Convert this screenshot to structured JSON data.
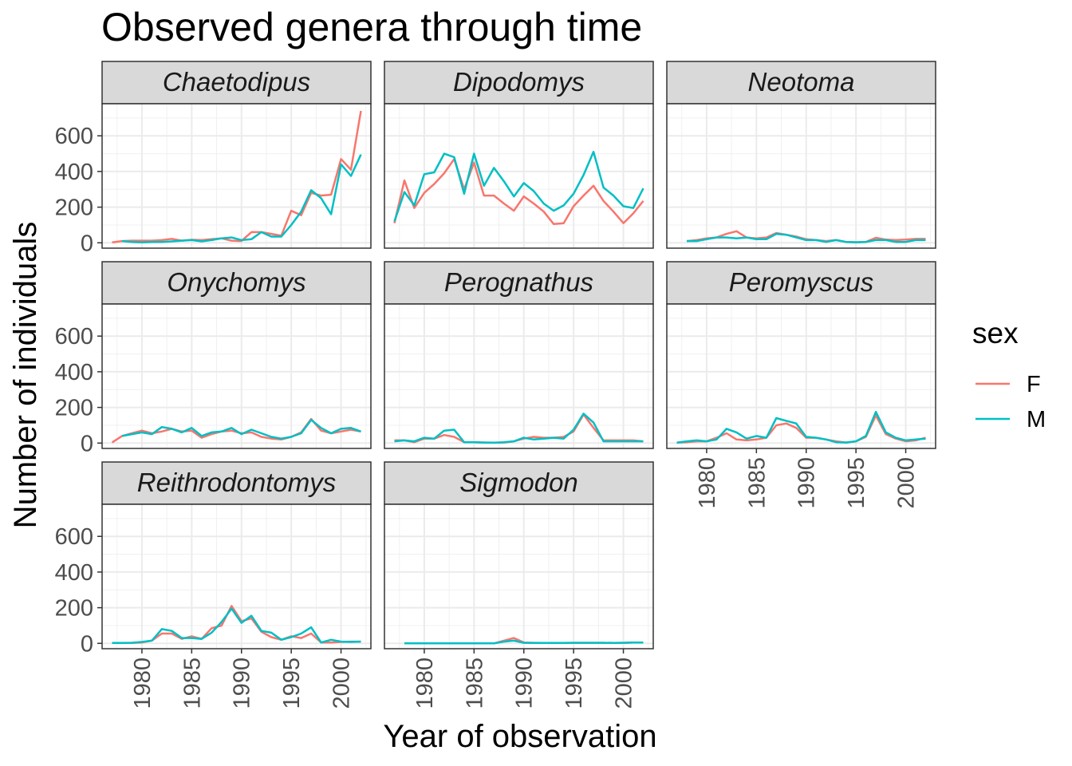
{
  "chart_data": {
    "type": "line",
    "title": "Observed genera through time",
    "xlabel": "Year of observation",
    "ylabel": "Number of individuals",
    "x_ticks": [
      1980,
      1985,
      1990,
      1995,
      2000
    ],
    "y_ticks": [
      0,
      200,
      400,
      600
    ],
    "xlim": [
      1976,
      2003
    ],
    "ylim": [
      -30,
      780
    ],
    "grid": true,
    "legend": {
      "title": "sex",
      "position": "right",
      "entries": [
        {
          "label": "F",
          "color": "#F8766D"
        },
        {
          "label": "M",
          "color": "#00BFC4"
        }
      ]
    },
    "colors": {
      "F": "#F8766D",
      "M": "#00BFC4"
    },
    "panels": [
      {
        "genus": "Chaetodipus",
        "F": {
          "x": [
            1977,
            1978,
            1979,
            1980,
            1981,
            1982,
            1983,
            1984,
            1985,
            1986,
            1987,
            1988,
            1989,
            1990,
            1991,
            1992,
            1993,
            1994,
            1995,
            1996,
            1997,
            1998,
            1999,
            2000,
            2001,
            2002
          ],
          "y": [
            2,
            10,
            12,
            12,
            12,
            15,
            22,
            12,
            17,
            15,
            20,
            25,
            12,
            10,
            60,
            60,
            50,
            40,
            180,
            155,
            280,
            265,
            270,
            470,
            410,
            740
          ]
        },
        "M": {
          "x": [
            1978,
            1979,
            1980,
            1981,
            1982,
            1983,
            1984,
            1985,
            1986,
            1987,
            1988,
            1989,
            1990,
            1991,
            1992,
            1993,
            1994,
            1995,
            1996,
            1997,
            1998,
            1999,
            2000,
            2001,
            2002
          ],
          "y": [
            10,
            5,
            2,
            5,
            5,
            8,
            12,
            15,
            8,
            15,
            25,
            30,
            15,
            20,
            60,
            35,
            35,
            100,
            175,
            295,
            250,
            160,
            440,
            375,
            495
          ]
        }
      },
      {
        "genus": "Dipodomys",
        "F": {
          "x": [
            1977,
            1978,
            1979,
            1980,
            1981,
            1982,
            1983,
            1984,
            1985,
            1986,
            1987,
            1988,
            1989,
            1990,
            1991,
            1992,
            1993,
            1994,
            1995,
            1996,
            1997,
            1998,
            1999,
            2000,
            2001,
            2002
          ],
          "y": [
            110,
            350,
            195,
            280,
            330,
            390,
            470,
            300,
            450,
            265,
            265,
            220,
            180,
            260,
            220,
            175,
            105,
            110,
            205,
            265,
            320,
            235,
            175,
            110,
            165,
            235
          ]
        },
        "M": {
          "x": [
            1977,
            1978,
            1979,
            1980,
            1981,
            1982,
            1983,
            1984,
            1985,
            1986,
            1987,
            1988,
            1989,
            1990,
            1991,
            1992,
            1993,
            1994,
            1995,
            1996,
            1997,
            1998,
            1999,
            2000,
            2001,
            2002
          ],
          "y": [
            120,
            285,
            210,
            385,
            395,
            500,
            480,
            275,
            500,
            320,
            420,
            345,
            260,
            335,
            290,
            220,
            180,
            210,
            275,
            380,
            510,
            310,
            265,
            205,
            195,
            305
          ]
        }
      },
      {
        "genus": "Neotoma",
        "F": {
          "x": [
            1978,
            1979,
            1980,
            1981,
            1982,
            1983,
            1984,
            1985,
            1986,
            1987,
            1988,
            1989,
            1990,
            1991,
            1992,
            1993,
            1994,
            1995,
            1996,
            1997,
            1998,
            1999,
            2000,
            2001,
            2002
          ],
          "y": [
            10,
            15,
            25,
            30,
            50,
            65,
            30,
            25,
            30,
            55,
            45,
            35,
            20,
            15,
            10,
            15,
            5,
            3,
            5,
            28,
            18,
            15,
            18,
            22,
            22
          ]
        },
        "M": {
          "x": [
            1978,
            1979,
            1980,
            1981,
            1982,
            1983,
            1984,
            1985,
            1986,
            1987,
            1988,
            1989,
            1990,
            1991,
            1992,
            1993,
            1994,
            1995,
            1996,
            1997,
            1998,
            1999,
            2000,
            2001,
            2002
          ],
          "y": [
            10,
            10,
            20,
            30,
            30,
            25,
            30,
            20,
            20,
            50,
            45,
            30,
            15,
            15,
            5,
            15,
            5,
            3,
            5,
            15,
            15,
            5,
            5,
            15,
            15
          ]
        }
      },
      {
        "genus": "Onychomys",
        "F": {
          "x": [
            1977,
            1978,
            1979,
            1980,
            1981,
            1982,
            1983,
            1984,
            1985,
            1986,
            1987,
            1988,
            1989,
            1990,
            1991,
            1992,
            1993,
            1994,
            1995,
            1996,
            1997,
            1998,
            1999,
            2000,
            2001,
            2002
          ],
          "y": [
            3,
            40,
            55,
            70,
            55,
            65,
            80,
            65,
            70,
            30,
            50,
            65,
            70,
            55,
            60,
            35,
            25,
            20,
            35,
            60,
            135,
            70,
            55,
            65,
            75,
            65
          ]
        },
        "M": {
          "x": [
            1978,
            1979,
            1980,
            1981,
            1982,
            1983,
            1984,
            1985,
            1986,
            1987,
            1988,
            1989,
            1990,
            1991,
            1992,
            1993,
            1994,
            1995,
            1996,
            1997,
            1998,
            1999,
            2000,
            2001,
            2002
          ],
          "y": [
            40,
            50,
            60,
            50,
            90,
            80,
            60,
            85,
            40,
            60,
            65,
            85,
            50,
            75,
            55,
            35,
            25,
            35,
            55,
            130,
            85,
            55,
            80,
            85,
            65
          ]
        }
      },
      {
        "genus": "Perognathus",
        "F": {
          "x": [
            1977,
            1978,
            1979,
            1980,
            1981,
            1982,
            1983,
            1984,
            1985,
            1986,
            1987,
            1988,
            1989,
            1990,
            1991,
            1992,
            1993,
            1994,
            1995,
            1996,
            1997,
            1998,
            1999,
            2000,
            2001,
            2002
          ],
          "y": [
            15,
            15,
            5,
            25,
            25,
            45,
            35,
            5,
            5,
            3,
            2,
            3,
            10,
            25,
            35,
            30,
            30,
            35,
            65,
            160,
            85,
            15,
            15,
            15,
            15,
            10
          ]
        },
        "M": {
          "x": [
            1977,
            1978,
            1979,
            1980,
            1981,
            1982,
            1983,
            1984,
            1985,
            1986,
            1987,
            1988,
            1989,
            1990,
            1991,
            1992,
            1993,
            1994,
            1995,
            1996,
            1997,
            1998,
            1999,
            2000,
            2001,
            2002
          ],
          "y": [
            10,
            15,
            10,
            30,
            25,
            70,
            75,
            5,
            5,
            3,
            2,
            5,
            10,
            30,
            20,
            25,
            30,
            25,
            75,
            165,
            115,
            10,
            10,
            10,
            10,
            10
          ]
        }
      },
      {
        "genus": "Peromyscus",
        "F": {
          "x": [
            1977,
            1978,
            1979,
            1980,
            1981,
            1982,
            1983,
            1984,
            1985,
            1986,
            1987,
            1988,
            1989,
            1990,
            1991,
            1992,
            1993,
            1994,
            1995,
            1996,
            1997,
            1998,
            1999,
            2000,
            2001,
            2002
          ],
          "y": [
            2,
            5,
            10,
            10,
            30,
            55,
            20,
            15,
            20,
            30,
            100,
            110,
            85,
            30,
            30,
            20,
            10,
            3,
            10,
            35,
            155,
            50,
            25,
            10,
            15,
            30
          ]
        },
        "M": {
          "x": [
            1977,
            1978,
            1979,
            1980,
            1981,
            1982,
            1983,
            1984,
            1985,
            1986,
            1987,
            1988,
            1989,
            1990,
            1991,
            1992,
            1993,
            1994,
            1995,
            1996,
            1997,
            1998,
            1999,
            2000,
            2001,
            2002
          ],
          "y": [
            2,
            10,
            15,
            10,
            20,
            80,
            60,
            25,
            40,
            30,
            140,
            125,
            110,
            35,
            30,
            20,
            5,
            3,
            10,
            40,
            175,
            60,
            30,
            15,
            20,
            25
          ]
        }
      },
      {
        "genus": "Reithrodontomys",
        "F": {
          "x": [
            1977,
            1978,
            1979,
            1980,
            1981,
            1982,
            1983,
            1984,
            1985,
            1986,
            1987,
            1988,
            1989,
            1990,
            1991,
            1992,
            1993,
            1994,
            1995,
            1996,
            1997,
            1998,
            1999,
            2000,
            2001,
            2002
          ],
          "y": [
            2,
            2,
            3,
            5,
            15,
            55,
            55,
            25,
            40,
            25,
            85,
            100,
            210,
            125,
            140,
            65,
            35,
            20,
            40,
            30,
            55,
            5,
            5,
            8,
            10,
            10
          ]
        },
        "M": {
          "x": [
            1977,
            1978,
            1979,
            1980,
            1981,
            1982,
            1983,
            1984,
            1985,
            1986,
            1987,
            1988,
            1989,
            1990,
            1991,
            1992,
            1993,
            1994,
            1995,
            1996,
            1997,
            1998,
            1999,
            2000,
            2001,
            2002
          ],
          "y": [
            2,
            2,
            3,
            8,
            15,
            80,
            70,
            30,
            30,
            25,
            60,
            120,
            195,
            115,
            155,
            70,
            60,
            20,
            35,
            55,
            90,
            5,
            20,
            10,
            8,
            10
          ]
        }
      },
      {
        "genus": "Sigmodon",
        "F": {
          "x": [
            1978,
            1979,
            1980,
            1981,
            1982,
            1983,
            1984,
            1985,
            1986,
            1987,
            1988,
            1989,
            1990,
            1991,
            1992,
            1993,
            1994,
            1995,
            1996,
            1997,
            1998,
            1999,
            2000,
            2001,
            2002
          ],
          "y": [
            0,
            0,
            0,
            0,
            0,
            0,
            0,
            0,
            0,
            0,
            15,
            30,
            5,
            3,
            2,
            2,
            2,
            3,
            3,
            3,
            3,
            2,
            3,
            5,
            5
          ]
        },
        "M": {
          "x": [
            1978,
            1979,
            1980,
            1981,
            1982,
            1983,
            1984,
            1985,
            1986,
            1987,
            1988,
            1989,
            1990,
            1991,
            1992,
            1993,
            1994,
            1995,
            1996,
            1997,
            1998,
            1999,
            2000,
            2001,
            2002
          ],
          "y": [
            0,
            0,
            0,
            0,
            0,
            0,
            0,
            0,
            0,
            0,
            10,
            15,
            3,
            2,
            2,
            2,
            2,
            3,
            3,
            3,
            3,
            2,
            3,
            5,
            5
          ]
        }
      }
    ]
  }
}
